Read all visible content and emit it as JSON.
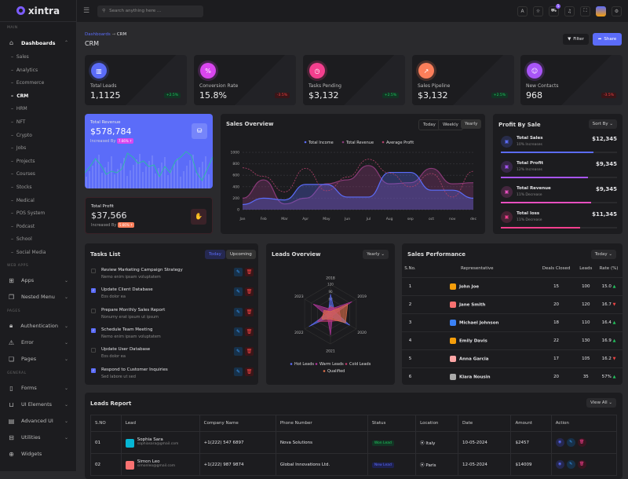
{
  "app": {
    "name": "xintra"
  },
  "sidebar": {
    "main_label": "MAIN",
    "dashboards": "Dashboards",
    "subitems": [
      "Sales",
      "Analytics",
      "Ecommerce",
      "CRM",
      "HRM",
      "NFT",
      "Crypto",
      "Jobs",
      "Projects",
      "Courses",
      "Stocks",
      "Medical",
      "POS System",
      "Podcast",
      "School",
      "Social Media"
    ],
    "active": "CRM",
    "groups": [
      {
        "label": "WEB APPS",
        "items": [
          {
            "label": "Apps",
            "icon": "grid-icon"
          },
          {
            "label": "Nested Menu",
            "icon": "layers-icon"
          }
        ]
      },
      {
        "label": "PAGES",
        "items": [
          {
            "label": "Authentication",
            "icon": "lock-icon"
          },
          {
            "label": "Error",
            "icon": "warning-icon"
          },
          {
            "label": "Pages",
            "icon": "pages-icon"
          }
        ]
      },
      {
        "label": "GENERAL",
        "items": [
          {
            "label": "Forms",
            "icon": "clipboard-icon"
          },
          {
            "label": "UI Elements",
            "icon": "box-icon"
          },
          {
            "label": "Advanced UI",
            "icon": "file-icon"
          },
          {
            "label": "Utilities",
            "icon": "inbox-icon"
          },
          {
            "label": "Widgets",
            "icon": "gift-icon"
          }
        ]
      }
    ]
  },
  "header": {
    "search_placeholder": "Search anything here ...",
    "cart_count": "5"
  },
  "page": {
    "breadcrumb_root": "Dashboards",
    "breadcrumb_current": "CRM",
    "title": "CRM",
    "filter": "Filter",
    "share": "Share"
  },
  "stats": [
    {
      "label": "Total Leads",
      "value": "1,1125",
      "change": "+2.5%",
      "dir": "up",
      "color": "#5b6cf9"
    },
    {
      "label": "Conversion Rate",
      "value": "15.8%",
      "change": "-3.5%",
      "dir": "dn",
      "color": "#d946ef"
    },
    {
      "label": "Tasks Pending",
      "value": "$3,132",
      "change": "+2.5%",
      "dir": "up",
      "color": "#f43f8e"
    },
    {
      "label": "Sales Pipeline",
      "value": "$3,132",
      "change": "+2.5%",
      "dir": "up",
      "color": "#fb7e5a"
    },
    {
      "label": "New Contacts",
      "value": "968",
      "change": "-3.5%",
      "dir": "dn",
      "color": "#a855f7"
    }
  ],
  "revenue": {
    "label": "Total Revenue",
    "value": "$578,784",
    "increased_by": "Increased By",
    "pct": "7.66% ↑"
  },
  "profit": {
    "label": "Total Profit",
    "value": "$37,566",
    "increased_by": "Increased By",
    "pct": "5.66% ↑"
  },
  "sales_overview": {
    "title": "Sales Overview",
    "tabs": [
      "Today",
      "Weekly",
      "Yearly"
    ],
    "active_tab": "Yearly"
  },
  "profit_by_sale": {
    "title": "Profit By Sale",
    "sort": "Sort By",
    "items": [
      {
        "name": "Total Sales",
        "sub": "10% Increases",
        "value": "$12,345",
        "pct": 80,
        "color": "#5b6cf9"
      },
      {
        "name": "Total Profit",
        "sub": "12% Increases",
        "value": "$9,345",
        "pct": 75,
        "color": "#a855f7"
      },
      {
        "name": "Total Revenue",
        "sub": "11% Decrease",
        "value": "$9,345",
        "pct": 78,
        "color": "#e84fc0"
      },
      {
        "name": "Total loss",
        "sub": "11% Decrease",
        "value": "$11,345",
        "pct": 68,
        "color": "#f43f8e"
      }
    ]
  },
  "tasks": {
    "title": "Tasks List",
    "tabs": [
      "Today",
      "Upcoming"
    ],
    "items": [
      {
        "title": "Review Marketing Campaign Strategy",
        "sub": "Nemo enim ipsam voluptatem",
        "done": false
      },
      {
        "title": "Update Client Database",
        "sub": "Eos dolor ea",
        "done": true
      },
      {
        "title": "Prepare Monthly Sales Report",
        "sub": "Nonumy erat ipsum ut ipsum",
        "done": false
      },
      {
        "title": "Schedule Team Meeting",
        "sub": "Nemo enim ipsam voluptatem",
        "done": true
      },
      {
        "title": "Update User Database",
        "sub": "Eos dolor ea",
        "done": false
      },
      {
        "title": "Respond to Customer Inquiries",
        "sub": "Sed labore ut sed",
        "done": true
      }
    ]
  },
  "leads_overview": {
    "title": "Leads Overview",
    "period": "Yearly"
  },
  "sales_performance": {
    "title": "Sales Performance",
    "period": "Today",
    "columns": [
      "S.No.",
      "Representative",
      "Deals Closed",
      "Leads",
      "Rate (%)"
    ],
    "rows": [
      [
        "1",
        "John Joe",
        "15",
        "100",
        "15.0",
        "up"
      ],
      [
        "2",
        "Jane Smith",
        "20",
        "120",
        "16.7",
        "dn"
      ],
      [
        "3",
        "Michael Johnson",
        "18",
        "110",
        "16.4",
        "up"
      ],
      [
        "4",
        "Emily Davis",
        "22",
        "130",
        "16.9",
        "up"
      ],
      [
        "5",
        "Anna Garcia",
        "17",
        "105",
        "16.2",
        "dn"
      ],
      [
        "6",
        "Klara Nousin",
        "20",
        "35",
        "57%",
        "up"
      ]
    ]
  },
  "leads_report": {
    "title": "Leads Report",
    "view": "View All",
    "columns": [
      "S.NO",
      "Lead",
      "Company Name",
      "Phone Number",
      "Status",
      "Location",
      "Date",
      "Amount",
      "Action"
    ],
    "rows": [
      {
        "no": "01",
        "name": "Sophia Sara",
        "email": "sophiasara@gmail.com",
        "company": "+1(222) 547 6897",
        "phone": "Nova Solutions",
        "status": "Won Lead",
        "location": "Italy",
        "date": "10-05-2024",
        "amount": "$2457"
      },
      {
        "no": "02",
        "name": "Simon Leo",
        "email": "simonleo@gmail.com",
        "company": "+1(222) 987 9874",
        "phone": "Global Innovations Ltd.",
        "status": "New Lead",
        "location": "Paris",
        "date": "12-05-2024",
        "amount": "$14009"
      }
    ]
  },
  "chart_data": [
    {
      "type": "area",
      "title": "Sales Overview",
      "categories": [
        "Jan",
        "Feb",
        "Mar",
        "Apr",
        "May",
        "Jun",
        "Jul",
        "Aug",
        "sep",
        "oct",
        "nov",
        "dec"
      ],
      "ylim": [
        0,
        1000
      ],
      "yticks": [
        0,
        200,
        400,
        600,
        800,
        1000
      ],
      "grid": true,
      "legend": "top",
      "series": [
        {
          "name": "Total Income",
          "color": "#5b6cf9",
          "values": [
            90,
            200,
            170,
            440,
            440,
            220,
            220,
            650,
            650,
            340,
            340,
            200
          ]
        },
        {
          "name": "Total Revenue",
          "color": "#8a3a78",
          "values": [
            200,
            520,
            100,
            200,
            450,
            520,
            770,
            450,
            470,
            720,
            450,
            470
          ]
        },
        {
          "name": "Average Profit",
          "color": "#b0406a",
          "dashed": true,
          "values": [
            730,
            580,
            310,
            720,
            330,
            570,
            880,
            640,
            400,
            630,
            220,
            670
          ]
        }
      ]
    },
    {
      "type": "radar",
      "title": "Leads Overview",
      "categories": [
        "2018",
        "2019",
        "2020",
        "2021",
        "2022",
        "2023"
      ],
      "rlim": [
        0,
        120
      ],
      "rticks": [
        0,
        30,
        60,
        90,
        120
      ],
      "legend": "bottom",
      "series": [
        {
          "name": "Hot Leads",
          "color": "#5b6cf9",
          "values": [
            80,
            20,
            90,
            10,
            100,
            10
          ]
        },
        {
          "name": "Warm Leads",
          "color": "#b5359e",
          "values": [
            20,
            100,
            10,
            85,
            15,
            80
          ]
        },
        {
          "name": "Cold Leads",
          "color": "#c0396e",
          "values": [
            30,
            40,
            50,
            30,
            60,
            20
          ]
        },
        {
          "name": "Qualified",
          "color": "#e0704a",
          "values": [
            10,
            80,
            70,
            20,
            40,
            30
          ]
        }
      ]
    }
  ]
}
